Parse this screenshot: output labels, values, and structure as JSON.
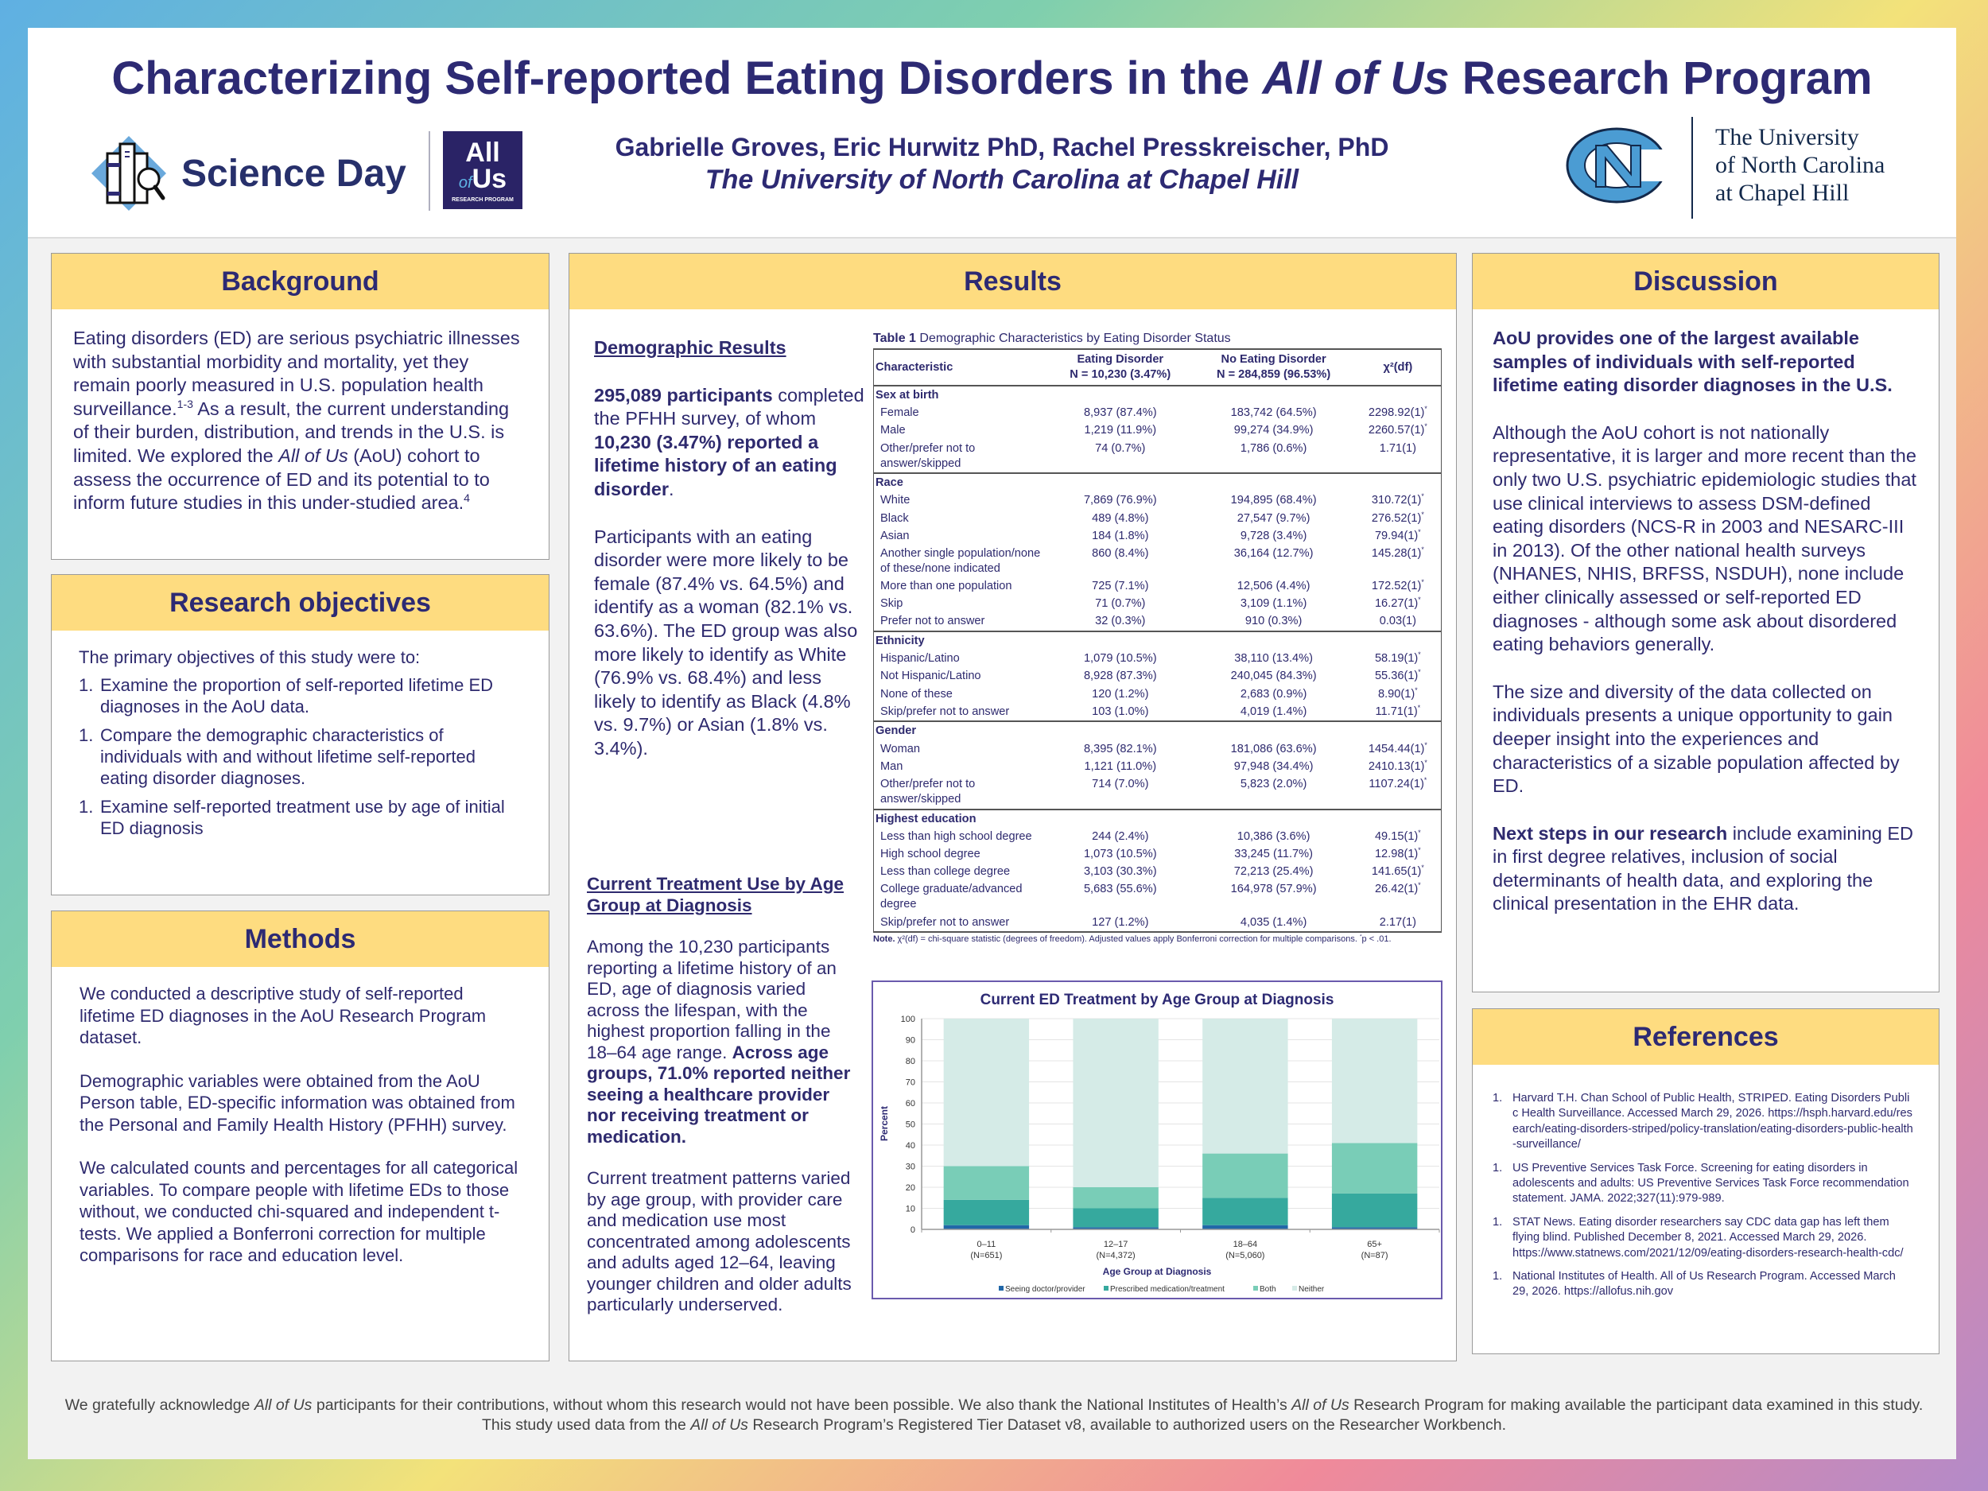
{
  "header": {
    "title_parts": [
      {
        "text": "Characterizing Self-reported Eating Disorders in the "
      },
      {
        "text": "All of Us",
        "italic": true
      },
      {
        "text": " Research Program"
      }
    ],
    "authors": "Gabrielle Groves, Eric Hurwitz PhD, Rachel Presskreischer, PhD",
    "affiliation": "The University of North Carolina at Chapel Hill",
    "science_day_logo": "Science Day",
    "allofus_logo": {
      "line1": "All",
      "of": "of",
      "us": "Us",
      "line3": "RESEARCH PROGRAM"
    },
    "unc_logo": [
      "The University",
      "of North Carolina",
      "at Chapel Hill"
    ]
  },
  "colors": {
    "title": "#2d2a73",
    "section_header_bg": "#fedc80",
    "text": "#2e2a6e"
  },
  "background": {
    "heading": "Background",
    "text": [
      {
        "text": "Eating disorders (ED) are serious psychiatric illnesses with substantial morbidity and mortality, yet they remain poorly measured in U.S. population health surveillance."
      },
      {
        "text": "1-3",
        "sup": true
      },
      {
        "text": " As a result, the current understanding of their burden, distribution, and trends in the U.S. is limited. We explored the "
      },
      {
        "text": "All of Us",
        "italic": true
      },
      {
        "text": " (AoU) cohort to assess the occurrence of ED and its potential to to inform future studies in this under-studied area."
      },
      {
        "text": "4",
        "sup": true
      }
    ]
  },
  "objectives": {
    "heading": "Research objectives",
    "intro": "The primary objectives of this study were to:",
    "items": [
      {
        "num": "1.",
        "text": "Examine the proportion of self-reported lifetime ED diagnoses in the AoU data."
      },
      {
        "num": "1.",
        "text": "Compare the demographic characteristics of individuals with and without lifetime self-reported eating disorder diagnoses."
      },
      {
        "num": "1.",
        "text": "Examine self-reported treatment use by age of initial ED diagnosis"
      }
    ]
  },
  "methods": {
    "heading": "Methods",
    "paragraphs": [
      "We conducted a descriptive study of self-reported lifetime ED diagnoses in the AoU Research Program dataset.",
      "Demographic variables were obtained from the AoU Person table, ED-specific information was obtained from the Personal and Family Health History (PFHH) survey.",
      "We calculated counts and percentages for all categorical variables. To compare people with lifetime EDs to those without, we conducted  chi-squared and independent t-tests. We applied a Bonferroni correction for multiple comparisons for race and education level."
    ]
  },
  "results": {
    "heading": "Results",
    "demographic_heading": "Demographic Results",
    "demo_p1": [
      {
        "text": "295,089 participants",
        "bold": true
      },
      {
        "text": " completed the PFHH survey, of whom "
      },
      {
        "text": "10,230 (3.47%) reported a lifetime history of an eating disorder",
        "bold": true
      },
      {
        "text": "."
      }
    ],
    "demo_p2": "Participants with an eating disorder were more likely to be female (87.4% vs. 64.5%) and identify as a woman (82.1% vs. 63.6%). The ED group was also more likely to identify as White (76.9% vs. 68.4%) and less likely to identify as Black (4.8% vs. 9.7%) or Asian (1.8% vs. 3.4%).",
    "treatment_heading": "Current Treatment Use by Age Group at Diagnosis",
    "treat_p1": [
      {
        "text": "Among the 10,230 participants reporting a lifetime history of an ED, age of diagnosis varied across the lifespan, with the highest proportion falling in the 18–64 age range. "
      },
      {
        "text": "Across age groups, 71.0% reported neither seeing a healthcare provider nor receiving treatment or medication.",
        "bold": true
      }
    ],
    "treat_p2": "Current treatment patterns varied by age group, with provider care and medication use most concentrated among adolescents and adults aged 12–64, leaving younger children and older adults particularly underserved."
  },
  "table": {
    "caption_label": "Table 1",
    "caption": " Demographic Characteristics by Eating Disorder Status",
    "columns": [
      {
        "line1": "Characteristic",
        "line2": ""
      },
      {
        "line1": "Eating Disorder",
        "line2": "N = 10,230 (3.47%)"
      },
      {
        "line1": "No Eating Disorder",
        "line2": "N = 284,859 (96.53%)"
      },
      {
        "line1": "χ²(df)",
        "line2": ""
      }
    ],
    "sections": [
      {
        "title": "Sex at birth",
        "rows": [
          {
            "label": "Female",
            "ed": "8,937 (87.4%)",
            "no_ed": "183,742 (64.5%)",
            "chi": "2298.92(1)",
            "sig": true
          },
          {
            "label": "Male",
            "ed": "1,219 (11.9%)",
            "no_ed": "99,274 (34.9%)",
            "chi": "2260.57(1)",
            "sig": true
          },
          {
            "label": "Other/prefer not to answer/skipped",
            "ed": "74 (0.7%)",
            "no_ed": "1,786 (0.6%)",
            "chi": "1.71(1)",
            "sig": false
          }
        ]
      },
      {
        "title": "Race",
        "rows": [
          {
            "label": "White",
            "ed": "7,869 (76.9%)",
            "no_ed": "194,895 (68.4%)",
            "chi": "310.72(1)",
            "sig": true
          },
          {
            "label": "Black",
            "ed": "489 (4.8%)",
            "no_ed": "27,547 (9.7%)",
            "chi": "276.52(1)",
            "sig": true
          },
          {
            "label": "Asian",
            "ed": "184 (1.8%)",
            "no_ed": "9,728 (3.4%)",
            "chi": "79.94(1)",
            "sig": true
          },
          {
            "label": "Another single population/none of these/none indicated",
            "ed": "860 (8.4%)",
            "no_ed": "36,164 (12.7%)",
            "chi": "145.28(1)",
            "sig": true
          },
          {
            "label": "More than one population",
            "ed": "725 (7.1%)",
            "no_ed": "12,506 (4.4%)",
            "chi": "172.52(1)",
            "sig": true
          },
          {
            "label": "Skip",
            "ed": "71 (0.7%)",
            "no_ed": "3,109 (1.1%)",
            "chi": "16.27(1)",
            "sig": true
          },
          {
            "label": "Prefer not to answer",
            "ed": "32 (0.3%)",
            "no_ed": "910 (0.3%)",
            "chi": "0.03(1)",
            "sig": false
          }
        ]
      },
      {
        "title": "Ethnicity",
        "rows": [
          {
            "label": "Hispanic/Latino",
            "ed": "1,079 (10.5%)",
            "no_ed": "38,110 (13.4%)",
            "chi": "58.19(1)",
            "sig": true
          },
          {
            "label": "Not Hispanic/Latino",
            "ed": "8,928 (87.3%)",
            "no_ed": "240,045 (84.3%)",
            "chi": "55.36(1)",
            "sig": true
          },
          {
            "label": "None of these",
            "ed": "120 (1.2%)",
            "no_ed": "2,683 (0.9%)",
            "chi": "8.90(1)",
            "sig": true
          },
          {
            "label": "Skip/prefer not to answer",
            "ed": "103 (1.0%)",
            "no_ed": "4,019 (1.4%)",
            "chi": "11.71(1)",
            "sig": true
          }
        ]
      },
      {
        "title": "Gender",
        "rows": [
          {
            "label": "Woman",
            "ed": "8,395 (82.1%)",
            "no_ed": "181,086 (63.6%)",
            "chi": "1454.44(1)",
            "sig": true
          },
          {
            "label": "Man",
            "ed": "1,121 (11.0%)",
            "no_ed": "97,948 (34.4%)",
            "chi": "2410.13(1)",
            "sig": true
          },
          {
            "label": "Other/prefer not to answer/skipped",
            "ed": "714 (7.0%)",
            "no_ed": "5,823 (2.0%)",
            "chi": "1107.24(1)",
            "sig": true
          }
        ]
      },
      {
        "title": "Highest education",
        "rows": [
          {
            "label": "Less than high school degree",
            "ed": "244 (2.4%)",
            "no_ed": "10,386 (3.6%)",
            "chi": "49.15(1)",
            "sig": true
          },
          {
            "label": "High school degree",
            "ed": "1,073 (10.5%)",
            "no_ed": "33,245 (11.7%)",
            "chi": "12.98(1)",
            "sig": true
          },
          {
            "label": "Less than college degree",
            "ed": "3,103 (30.3%)",
            "no_ed": "72,213 (25.4%)",
            "chi": "141.65(1)",
            "sig": true
          },
          {
            "label": "College graduate/advanced degree",
            "ed": "5,683 (55.6%)",
            "no_ed": "164,978 (57.9%)",
            "chi": "26.42(1)",
            "sig": true
          },
          {
            "label": "Skip/prefer not to answer",
            "ed": "127 (1.2%)",
            "no_ed": "4,035 (1.4%)",
            "chi": "2.17(1)",
            "sig": false
          }
        ]
      }
    ],
    "sig_mark": "*",
    "note_label": "Note.",
    "note": " χ²(df) = chi-square statistic (degrees of freedom). Adjusted values apply Bonferroni correction for multiple comparisons. ",
    "note_sig": "*",
    "note_end": "p < .01."
  },
  "chart_data": {
    "type": "bar",
    "stacked": true,
    "title": "Current ED Treatment by Age Group at Diagnosis",
    "xlabel": "Age Group at Diagnosis",
    "ylabel": "Percent",
    "ylim": [
      0,
      100
    ],
    "yticks": [
      0,
      10,
      20,
      30,
      40,
      50,
      60,
      70,
      80,
      90,
      100
    ],
    "grid": true,
    "legend": "bottom",
    "categories": [
      "0–11",
      "12–17",
      "18–64",
      "65+"
    ],
    "category_n": [
      "(N=651)",
      "(N=4,372)",
      "(N=5,060)",
      "(N=87)"
    ],
    "series": [
      {
        "name": "Seeing doctor/provider",
        "color": "#2167a8",
        "values": [
          2,
          1,
          2,
          1
        ]
      },
      {
        "name": "Prescribed medication/treatment",
        "color": "#36a99e",
        "values": [
          12,
          9,
          13,
          16
        ]
      },
      {
        "name": "Both",
        "color": "#79cdb7",
        "values": [
          16,
          10,
          21,
          24
        ]
      },
      {
        "name": "Neither",
        "color": "#d5ebe7",
        "values": [
          70,
          80,
          64,
          59
        ]
      }
    ]
  },
  "discussion": {
    "heading": "Discussion",
    "lead": "AoU provides one of the largest available samples of individuals with self-reported lifetime eating disorder diagnoses in the U.S.",
    "p1": "Although the AoU cohort is not nationally representative, it is larger and more recent than the only two U.S. psychiatric epidemiologic studies that use clinical interviews to assess DSM-defined eating disorders (NCS-R in 2003 and NESARC-III in 2013). Of the other national health surveys (NHANES, NHIS, BRFSS, NSDUH), none include either clinically assessed or self-reported ED diagnoses - although some ask about disordered eating behaviors generally.",
    "p2": "The size and diversity of the data collected on individuals presents a unique opportunity to gain deeper insight into the experiences and characteristics of a sizable population affected by ED.",
    "p3": [
      {
        "text": "Next steps in our research",
        "bold": true
      },
      {
        "text": " include examining ED in first degree relatives, inclusion of social determinants of health data, and exploring the clinical presentation in the EHR data."
      }
    ]
  },
  "references": {
    "heading": "References",
    "items": [
      {
        "num": "1.",
        "text": "Harvard T.H. Chan School of Public Health, STRIPED. Eating Disorders Public Health Surveillance. Accessed March 29, 2026. https://hsph.harvard.edu/research/eating-disorders-striped/policy-translation/eating-disorders-public-health-surveillance/"
      },
      {
        "num": "1.",
        "text": "US Preventive Services Task Force. Screening for eating disorders in adolescents and adults: US Preventive Services Task Force recommendation statement. JAMA. 2022;327(11):979-989."
      },
      {
        "num": "1.",
        "text": "STAT News. Eating disorder researchers say CDC data gap has left them flying blind. Published December 8, 2021. Accessed March 29, 2026. https://www.statnews.com/2021/12/09/eating-disorders-research-health-cdc/"
      },
      {
        "num": "1.",
        "text": "National Institutes of Health. All of Us Research Program. Accessed March 29, 2026. https://allofus.nih.gov"
      }
    ]
  },
  "footer": [
    {
      "text": "We gratefully acknowledge "
    },
    {
      "text": "All of Us",
      "italic": true
    },
    {
      "text": " participants for their contributions, without whom this research would not have been possible. We also thank the National Institutes of Health’s "
    },
    {
      "text": "All of Us",
      "italic": true
    },
    {
      "text": " Research Program for making available the participant data examined in this study. This study used data from the "
    },
    {
      "text": "All of Us",
      "italic": true
    },
    {
      "text": " Research Program’s Registered Tier Dataset v8, available to authorized users on the Researcher Workbench."
    }
  ]
}
